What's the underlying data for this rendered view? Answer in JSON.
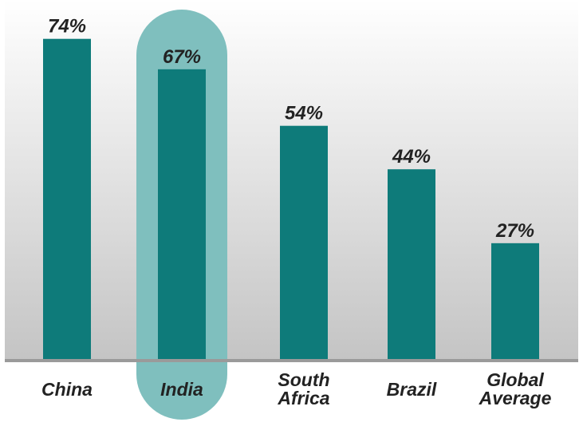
{
  "chart_data": {
    "type": "bar",
    "categories": [
      "China",
      "India",
      "South Africa",
      "Brazil",
      "Global Average"
    ],
    "category_lines": [
      [
        "China"
      ],
      [
        "India"
      ],
      [
        "South",
        "Africa"
      ],
      [
        "Brazil"
      ],
      [
        "Global",
        "Average"
      ]
    ],
    "values": [
      74,
      67,
      54,
      44,
      27
    ],
    "value_labels": [
      "74%",
      "67%",
      "54%",
      "44%",
      "27%"
    ],
    "highlighted_category": "India",
    "title": "",
    "xlabel": "",
    "ylabel": "",
    "ylim": [
      0,
      80
    ],
    "grid": false,
    "legend": "none",
    "colors": {
      "bar": "#0e7b7a",
      "highlight": "#7fbfbe",
      "background_top": "#ffffff",
      "background_bottom": "#c4c4c4",
      "baseline": "#9a9a9a",
      "text": "#222222"
    }
  }
}
